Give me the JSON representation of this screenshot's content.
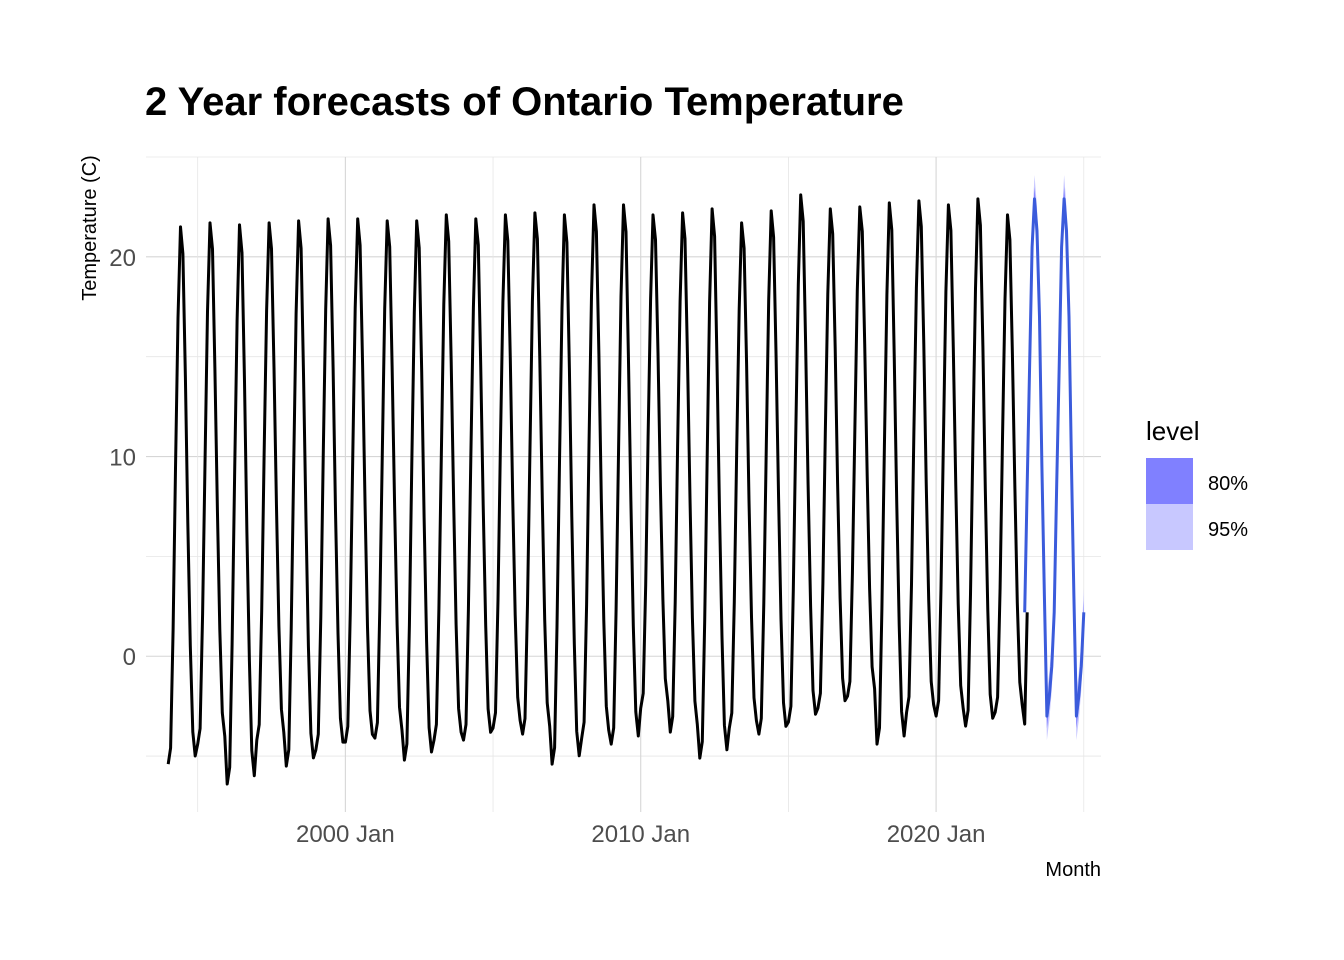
{
  "chart_data": {
    "type": "line",
    "title": "2 Year forecasts of Ontario Temperature",
    "xlabel": "Month",
    "ylabel": "Temperature (C)",
    "x_ticks": [
      "2000 Jan",
      "2010 Jan",
      "2020 Jan"
    ],
    "y_ticks": [
      "0",
      "10",
      "20"
    ],
    "xlim": [
      "1993-04",
      "2025-08"
    ],
    "ylim": [
      -7.8,
      25
    ],
    "grid": true,
    "legend": {
      "title": "level",
      "placement": "right",
      "items": [
        {
          "label": "80%",
          "color": "#8080ff"
        },
        {
          "label": "95%",
          "color": "#c8c8ff"
        }
      ]
    },
    "series": [
      {
        "x_start": "1994-01",
        "frequency": "monthly",
        "color": "#000000",
        "peaks": [
          21.5,
          21.7,
          21.6,
          21.7,
          21.8,
          21.9,
          21.9,
          21.8,
          21.8,
          22.1,
          21.9,
          22.1,
          22.2,
          22.1,
          22.6,
          22.6,
          22.1,
          22.2,
          22.4,
          21.7,
          22.3,
          23.1,
          22.4,
          22.5,
          22.7,
          22.8,
          22.6,
          22.9,
          22.1
        ],
        "troughs": [
          -5.4,
          -4.4,
          -6.4,
          -4.2,
          -5.5,
          -4.7,
          -4.3,
          -4.1,
          -5.2,
          -4.2,
          -4.2,
          -3.6,
          -3.9,
          -5.4,
          -4.1,
          -4.4,
          -2.6,
          -3.8,
          -5.1,
          -3.6,
          -3.9,
          -3.3,
          -2.6,
          -2.0,
          -4.4,
          -2.8,
          -3.0,
          -3.5,
          -2.8,
          -3.4
        ],
        "last_value": 2.2
      },
      {
        "x_start": "2023-01",
        "frequency": "monthly",
        "color": "#3b5bdb",
        "values": [
          2.2,
          8.6,
          14.5,
          20.5,
          22.9,
          21.3,
          17.0,
          9.5,
          3.0,
          -3.0,
          -2.0,
          -0.5,
          2.2,
          8.6,
          14.5,
          20.5,
          22.9,
          21.3,
          17.0,
          9.5,
          3.0,
          -3.0,
          -2.0,
          -0.5,
          2.2
        ]
      }
    ]
  }
}
